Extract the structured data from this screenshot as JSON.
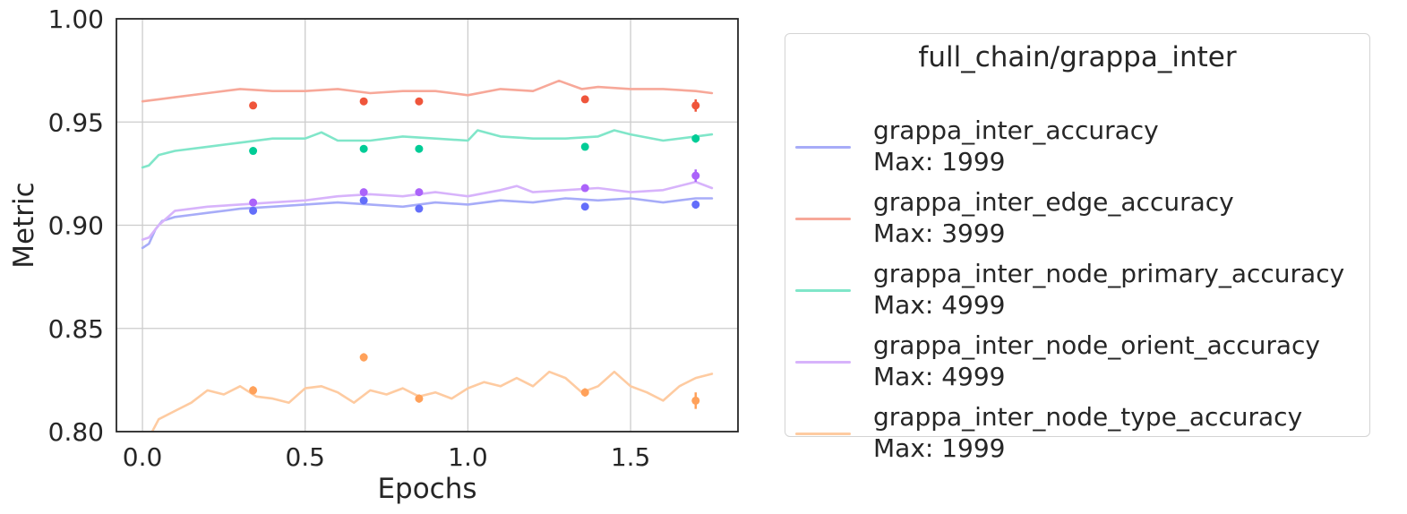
{
  "chart_data": {
    "type": "line",
    "xlabel": "Epochs",
    "ylabel": "Metric",
    "xlim": [
      -0.08,
      1.83
    ],
    "ylim": [
      0.8,
      1.0
    ],
    "xticks": [
      0.0,
      0.5,
      1.0,
      1.5
    ],
    "xtick_labels": [
      "0.0",
      "0.5",
      "1.0",
      "1.5"
    ],
    "yticks": [
      0.8,
      0.85,
      0.9,
      0.95,
      1.0
    ],
    "ytick_labels": [
      "0.80",
      "0.85",
      "0.90",
      "0.95",
      "1.00"
    ],
    "grid": true,
    "legend": {
      "title": "full_chain/grappa_inter",
      "placement": "outside-right"
    },
    "series": [
      {
        "name": "grappa_inter_accuracy",
        "max_label": "Max: 1999",
        "line_color": "#a7acf8",
        "point_color": "#636efa",
        "line": {
          "x": [
            0.0,
            0.02,
            0.04,
            0.06,
            0.1,
            0.15,
            0.2,
            0.3,
            0.4,
            0.5,
            0.6,
            0.7,
            0.8,
            0.9,
            1.0,
            1.1,
            1.2,
            1.3,
            1.4,
            1.5,
            1.6,
            1.7,
            1.75
          ],
          "y": [
            0.889,
            0.891,
            0.898,
            0.902,
            0.904,
            0.905,
            0.906,
            0.908,
            0.909,
            0.91,
            0.911,
            0.91,
            0.909,
            0.911,
            0.91,
            0.912,
            0.911,
            0.913,
            0.912,
            0.913,
            0.911,
            0.913,
            0.913
          ]
        },
        "points": {
          "x": [
            0.34,
            0.68,
            0.85,
            1.36,
            1.7
          ],
          "y": [
            0.907,
            0.912,
            0.908,
            0.909,
            0.91
          ],
          "err": [
            0.001,
            0.001,
            0.001,
            0.001,
            0.002
          ]
        }
      },
      {
        "name": "grappa_inter_edge_accuracy",
        "max_label": "Max: 3999",
        "line_color": "#f7a899",
        "point_color": "#ef553b",
        "line": {
          "x": [
            0.0,
            0.05,
            0.1,
            0.2,
            0.3,
            0.4,
            0.5,
            0.6,
            0.7,
            0.8,
            0.9,
            1.0,
            1.1,
            1.2,
            1.28,
            1.35,
            1.4,
            1.5,
            1.6,
            1.7,
            1.75
          ],
          "y": [
            0.96,
            0.961,
            0.962,
            0.964,
            0.966,
            0.965,
            0.965,
            0.966,
            0.964,
            0.965,
            0.965,
            0.963,
            0.966,
            0.965,
            0.97,
            0.966,
            0.967,
            0.966,
            0.966,
            0.965,
            0.964
          ]
        },
        "points": {
          "x": [
            0.34,
            0.68,
            0.85,
            1.36,
            1.7
          ],
          "y": [
            0.958,
            0.96,
            0.96,
            0.961,
            0.958
          ],
          "err": [
            0.001,
            0.001,
            0.001,
            0.001,
            0.003
          ]
        }
      },
      {
        "name": "grappa_inter_node_primary_accuracy",
        "max_label": "Max: 4999",
        "line_color": "#80e6c9",
        "point_color": "#00cc96",
        "line": {
          "x": [
            0.0,
            0.02,
            0.05,
            0.1,
            0.2,
            0.3,
            0.4,
            0.5,
            0.55,
            0.6,
            0.7,
            0.8,
            0.9,
            1.0,
            1.03,
            1.1,
            1.2,
            1.3,
            1.4,
            1.45,
            1.5,
            1.6,
            1.7,
            1.75
          ],
          "y": [
            0.928,
            0.929,
            0.934,
            0.936,
            0.938,
            0.94,
            0.942,
            0.942,
            0.945,
            0.941,
            0.941,
            0.943,
            0.942,
            0.941,
            0.946,
            0.943,
            0.942,
            0.942,
            0.943,
            0.946,
            0.944,
            0.941,
            0.943,
            0.944
          ]
        },
        "points": {
          "x": [
            0.34,
            0.68,
            0.85,
            1.36,
            1.7
          ],
          "y": [
            0.936,
            0.937,
            0.937,
            0.938,
            0.942
          ],
          "err": [
            0.001,
            0.001,
            0.001,
            0.001,
            0.002
          ]
        }
      },
      {
        "name": "grappa_inter_node_orient_accuracy",
        "max_label": "Max: 4999",
        "line_color": "#d7b3fb",
        "point_color": "#ab63fa",
        "line": {
          "x": [
            0.0,
            0.02,
            0.05,
            0.1,
            0.2,
            0.3,
            0.4,
            0.5,
            0.6,
            0.7,
            0.8,
            0.9,
            1.0,
            1.1,
            1.15,
            1.2,
            1.3,
            1.4,
            1.5,
            1.6,
            1.7,
            1.75
          ],
          "y": [
            0.893,
            0.894,
            0.9,
            0.907,
            0.909,
            0.91,
            0.911,
            0.912,
            0.914,
            0.915,
            0.914,
            0.916,
            0.914,
            0.917,
            0.919,
            0.916,
            0.917,
            0.918,
            0.916,
            0.917,
            0.921,
            0.918
          ]
        },
        "points": {
          "x": [
            0.34,
            0.68,
            0.85,
            1.36,
            1.7
          ],
          "y": [
            0.911,
            0.916,
            0.916,
            0.918,
            0.924
          ],
          "err": [
            0.001,
            0.001,
            0.001,
            0.001,
            0.003
          ]
        }
      },
      {
        "name": "grappa_inter_node_type_accuracy",
        "max_label": "Max: 1999",
        "line_color": "#fecba1",
        "point_color": "#ffa15a",
        "line": {
          "x": [
            0.0,
            0.02,
            0.05,
            0.1,
            0.15,
            0.2,
            0.25,
            0.3,
            0.35,
            0.4,
            0.45,
            0.5,
            0.55,
            0.6,
            0.65,
            0.7,
            0.75,
            0.8,
            0.85,
            0.9,
            0.95,
            1.0,
            1.05,
            1.1,
            1.15,
            1.2,
            1.25,
            1.3,
            1.35,
            1.4,
            1.45,
            1.5,
            1.55,
            1.6,
            1.65,
            1.7,
            1.75
          ],
          "y": [
            0.79,
            0.797,
            0.806,
            0.81,
            0.814,
            0.82,
            0.818,
            0.822,
            0.817,
            0.816,
            0.814,
            0.821,
            0.822,
            0.819,
            0.814,
            0.82,
            0.818,
            0.821,
            0.817,
            0.819,
            0.816,
            0.821,
            0.824,
            0.822,
            0.826,
            0.822,
            0.829,
            0.826,
            0.819,
            0.822,
            0.829,
            0.822,
            0.819,
            0.815,
            0.822,
            0.826,
            0.828
          ]
        },
        "points": {
          "x": [
            0.34,
            0.68,
            0.85,
            1.36,
            1.7
          ],
          "y": [
            0.82,
            0.836,
            0.816,
            0.819,
            0.815
          ],
          "err": [
            0.002,
            0.002,
            0.002,
            0.002,
            0.004
          ]
        }
      }
    ]
  }
}
